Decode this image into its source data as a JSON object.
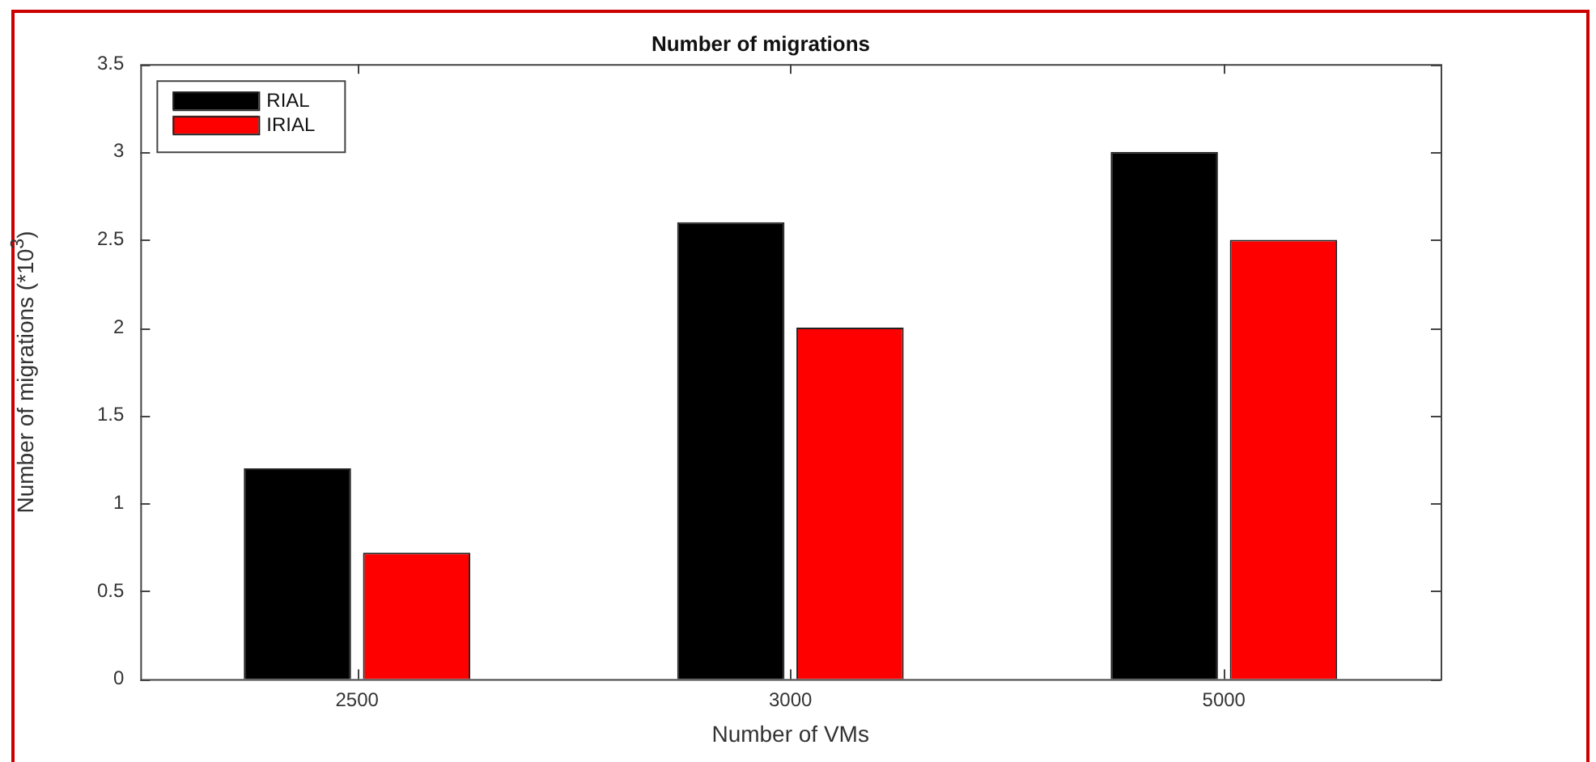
{
  "chart_data": {
    "type": "bar",
    "title": "Number of migrations",
    "xlabel": "Number of VMs",
    "ylabel": "Number of migrations (*10$^{3}$)",
    "categories": [
      "2500",
      "3000",
      "5000"
    ],
    "series": [
      {
        "name": "RIAL",
        "color": "#000000",
        "values": [
          1.2,
          2.6,
          3.0
        ]
      },
      {
        "name": "IRIAL",
        "color": "#ff0000",
        "values": [
          0.72,
          2.0,
          2.5
        ]
      }
    ],
    "ylim": [
      0,
      3.5
    ],
    "yticks": [
      0,
      0.5,
      1,
      1.5,
      2,
      2.5,
      3,
      3.5
    ],
    "legend": "top left"
  }
}
